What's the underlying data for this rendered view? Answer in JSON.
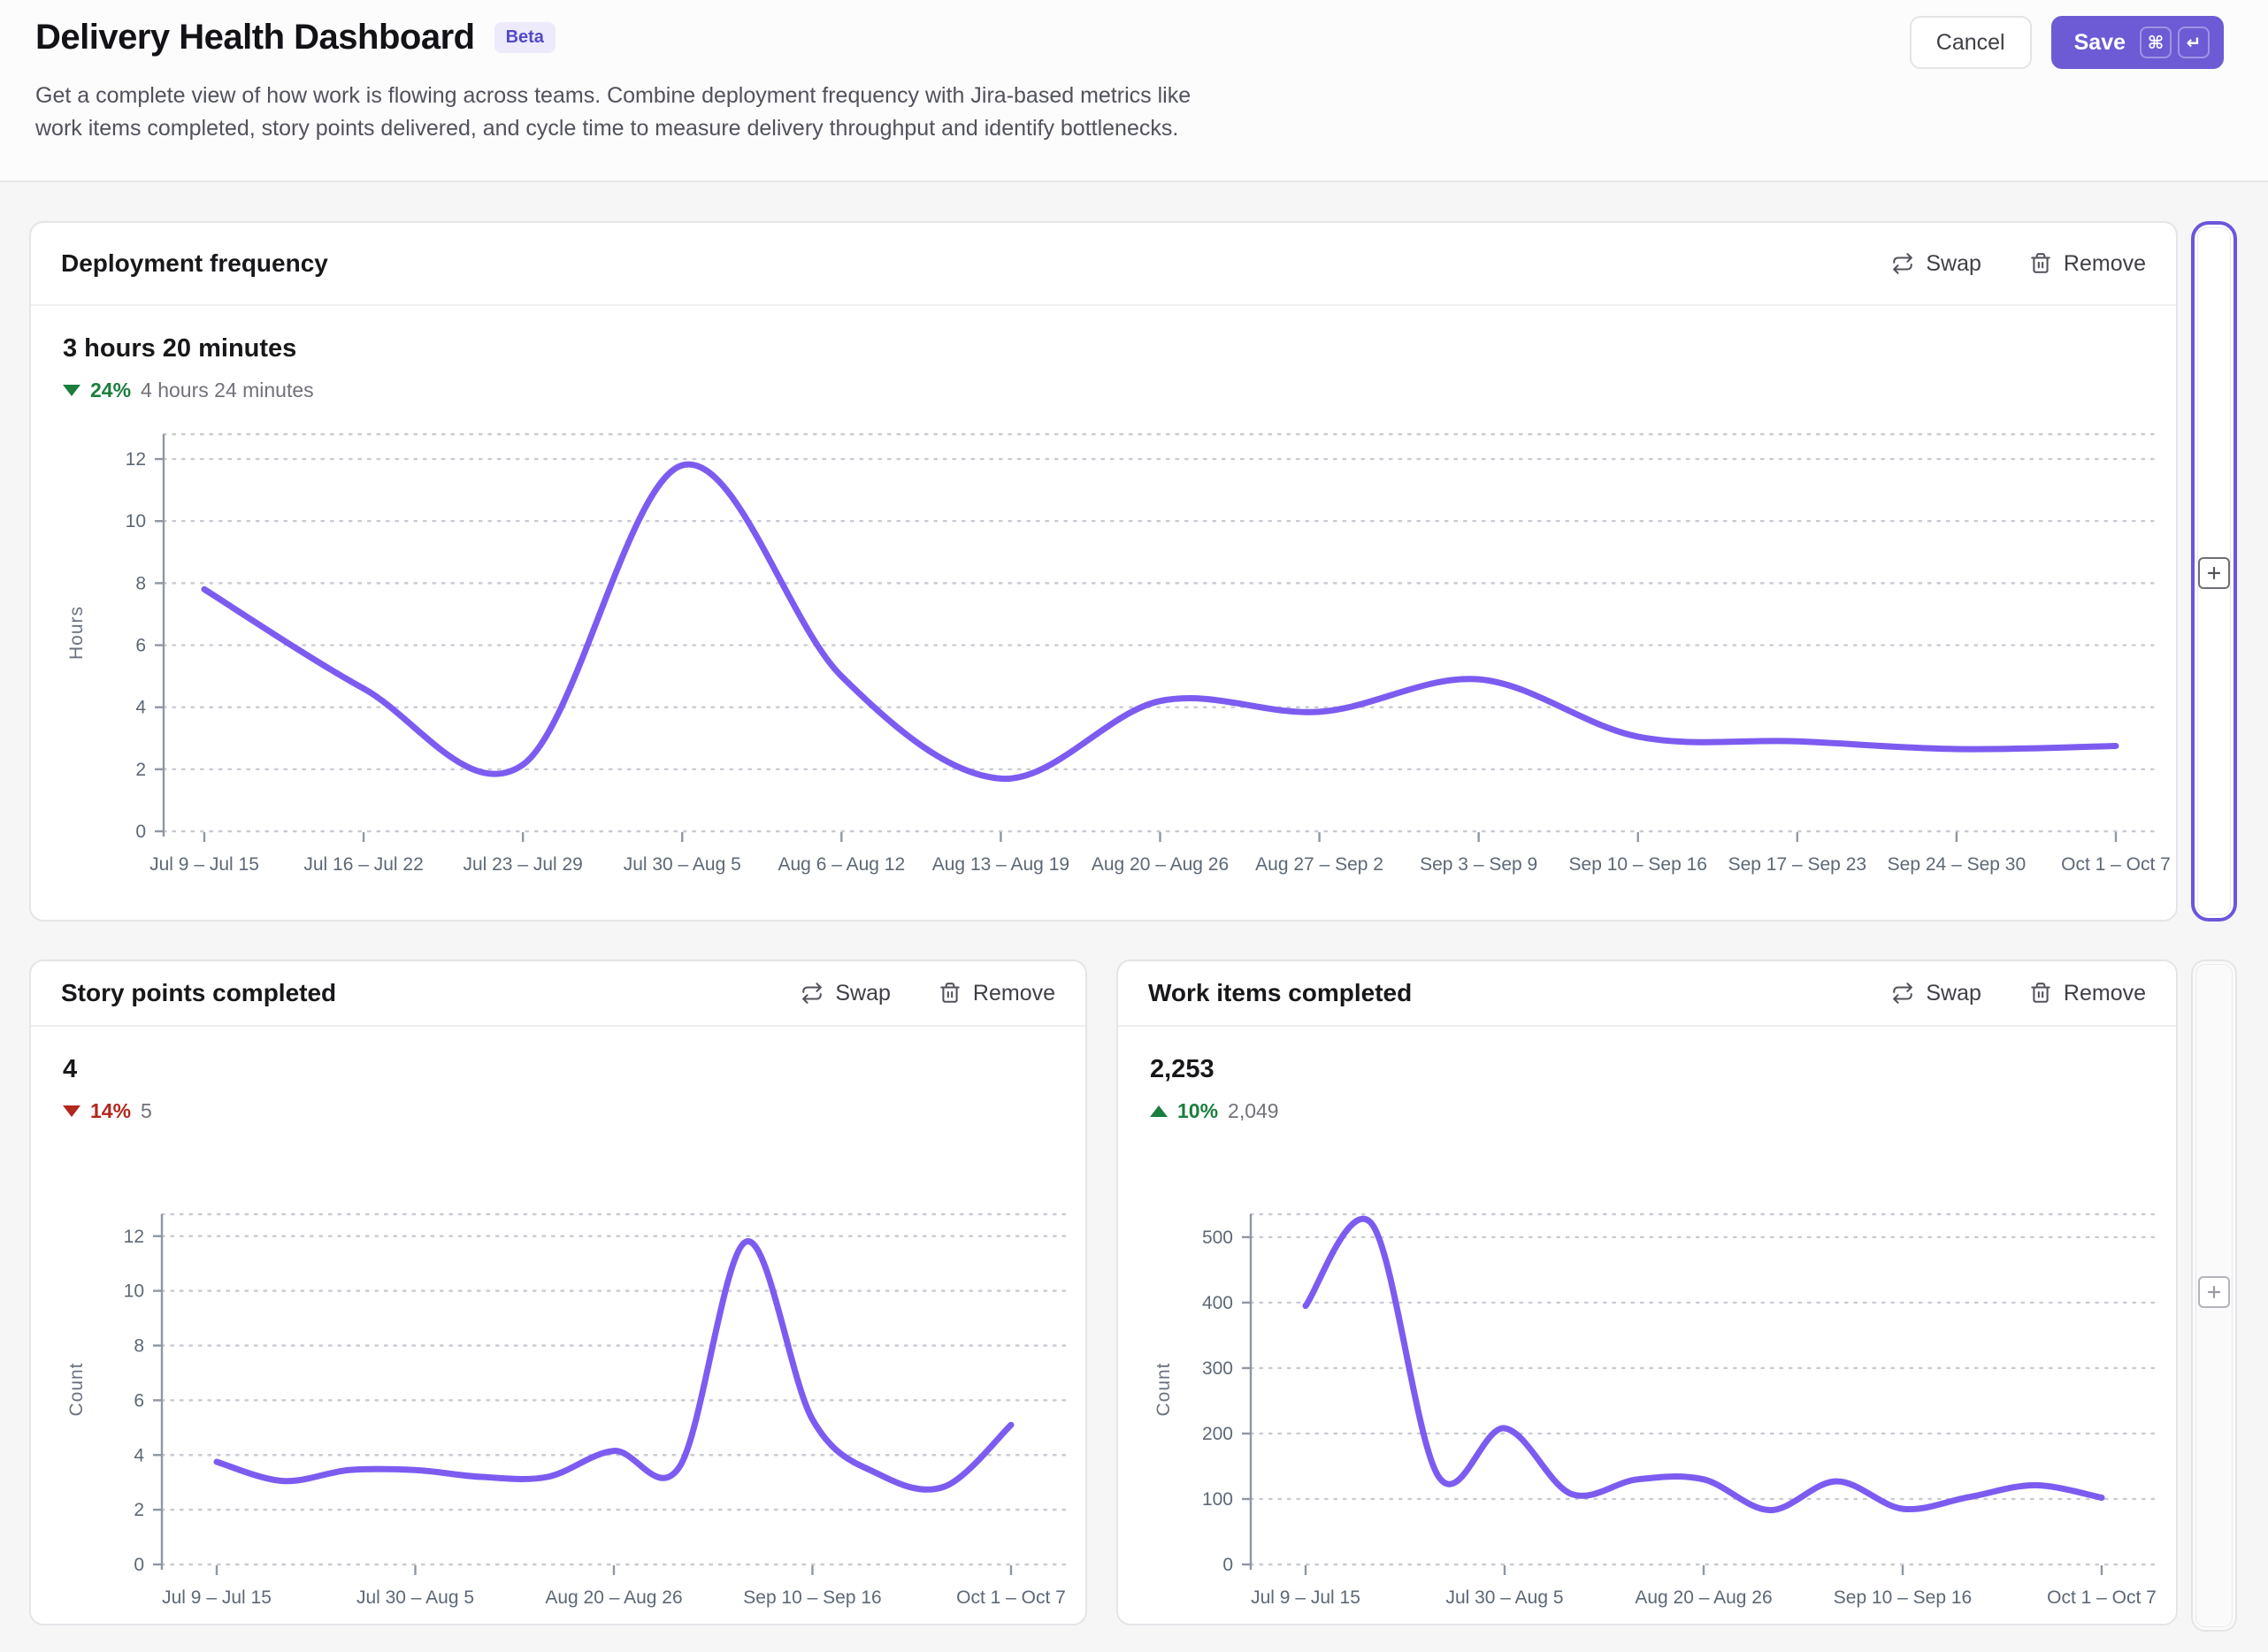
{
  "header": {
    "title": "Delivery Health Dashboard",
    "badge": "Beta",
    "description": [
      "Get a complete view of how work is flowing across teams. Combine deployment frequency with Jira-based metrics like",
      "work items completed, story points delivered, and cycle time to measure delivery throughput and identify bottlenecks."
    ],
    "cancel_label": "Cancel",
    "save_label": "Save",
    "save_shortcut": [
      "⌘",
      "↵"
    ]
  },
  "colors": {
    "accent": "#6C5BD4",
    "line": "#7C5CF0",
    "positive": "#1B7E3E",
    "negative": "#B3271E",
    "strip_active_border": "#6D55DC",
    "badge_bg": "#ECEAFB",
    "badge_text": "#5348C7"
  },
  "cards": [
    {
      "title": "Deployment frequency",
      "swap_label": "Swap",
      "remove_label": "Remove",
      "value": "3 hours 20 minutes",
      "delta": {
        "direction": "down",
        "tone": "positive",
        "percent": "24%",
        "baseline": "4 hours 24 minutes"
      }
    },
    {
      "title": "Story points completed",
      "swap_label": "Swap",
      "remove_label": "Remove",
      "value": "4",
      "delta": {
        "direction": "down",
        "tone": "negative",
        "percent": "14%",
        "baseline": "5"
      }
    },
    {
      "title": "Work items completed",
      "swap_label": "Swap",
      "remove_label": "Remove",
      "value": "2,253",
      "delta": {
        "direction": "up",
        "tone": "positive",
        "percent": "10%",
        "baseline": "2,049"
      }
    }
  ],
  "chart_data": [
    {
      "type": "line",
      "title": "Deployment frequency",
      "ylabel": "Hours",
      "categories": [
        "Jul 9 – Jul 15",
        "Jul 16 – Jul 22",
        "Jul 23 – Jul 29",
        "Jul 30 – Aug 5",
        "Aug 6 – Aug 12",
        "Aug 13 – Aug 19",
        "Aug 20 – Aug 26",
        "Aug 27 – Sep 2",
        "Sep 3 – Sep 9",
        "Sep 10 – Sep 16",
        "Sep 17 – Sep 23",
        "Sep 24 – Sep 30",
        "Oct 1 – Oct 7"
      ],
      "values": [
        7.8,
        4.6,
        2.15,
        11.8,
        5.0,
        1.7,
        4.2,
        3.85,
        4.9,
        3.05,
        2.9,
        2.65,
        2.75
      ],
      "ylim": [
        0,
        12.8
      ],
      "yticks": [
        0,
        2,
        4,
        6,
        8,
        10,
        12
      ],
      "x_tick_indices": [
        0,
        1,
        2,
        3,
        4,
        5,
        6,
        7,
        8,
        9,
        10,
        11,
        12
      ],
      "grid": "dashed-horizontal",
      "legend": "none",
      "line_color": "#7C5CF0"
    },
    {
      "type": "line",
      "title": "Story points completed",
      "ylabel": "Count",
      "categories": [
        "Jul 9 – Jul 15",
        "Jul 16 – Jul 22",
        "Jul 23 – Jul 29",
        "Jul 30 – Aug 5",
        "Aug 6 – Aug 12",
        "Aug 13 – Aug 19",
        "Aug 20 – Aug 26",
        "Aug 27 – Sep 2",
        "Sep 3 – Sep 9",
        "Sep 10 – Sep 16",
        "Sep 17 – Sep 23",
        "Sep 24 – Sep 30",
        "Oct 1 – Oct 7"
      ],
      "values": [
        3.75,
        3.05,
        3.45,
        3.45,
        3.2,
        3.2,
        4.15,
        3.6,
        11.8,
        5.3,
        3.3,
        2.85,
        5.1
      ],
      "ylim": [
        0,
        12.8
      ],
      "yticks": [
        0,
        2,
        4,
        6,
        8,
        10,
        12
      ],
      "x_tick_indices": [
        0,
        3,
        6,
        9,
        12
      ],
      "grid": "dashed-horizontal",
      "legend": "none",
      "line_color": "#7C5CF0"
    },
    {
      "type": "line",
      "title": "Work items completed",
      "ylabel": "Count",
      "categories": [
        "Jul 9 – Jul 15",
        "Jul 16 – Jul 22",
        "Jul 23 – Jul 29",
        "Jul 30 – Aug 5",
        "Aug 6 – Aug 12",
        "Aug 13 – Aug 19",
        "Aug 20 – Aug 26",
        "Aug 27 – Sep 2",
        "Sep 3 – Sep 9",
        "Sep 10 – Sep 16",
        "Sep 17 – Sep 23",
        "Sep 24 – Sep 30",
        "Oct 1 – Oct 7"
      ],
      "values": [
        395,
        520,
        135,
        208,
        108,
        130,
        130,
        83,
        127,
        85,
        103,
        121,
        102
      ],
      "ylim": [
        0,
        535
      ],
      "yticks": [
        0,
        100,
        200,
        300,
        400,
        500
      ],
      "x_tick_indices": [
        0,
        3,
        6,
        9,
        12
      ],
      "grid": "dashed-horizontal",
      "legend": "none",
      "line_color": "#7C5CF0"
    }
  ]
}
